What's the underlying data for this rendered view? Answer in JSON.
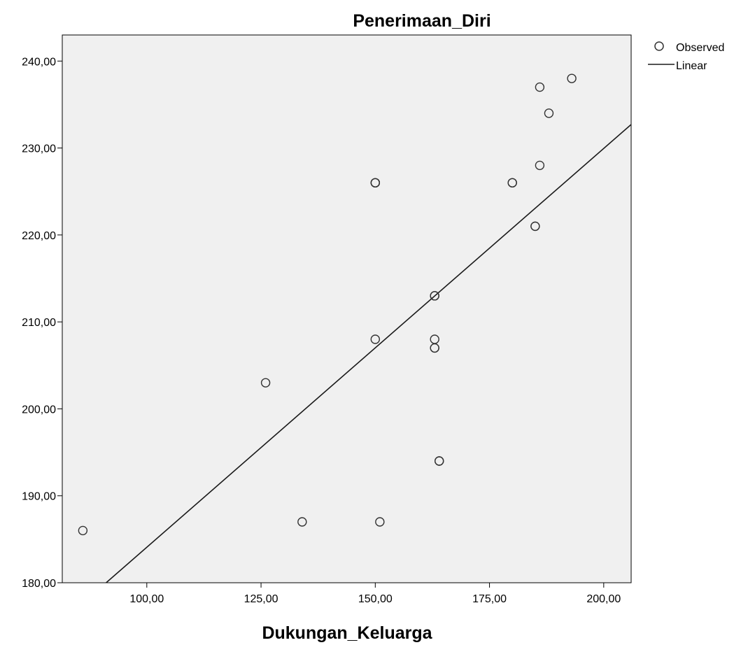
{
  "chart_data": {
    "type": "scatter",
    "title": "Penerimaan_Diri",
    "xlabel": "Dukungan_Keluarga",
    "ylabel": "",
    "xlim": [
      81.5,
      206
    ],
    "ylim": [
      180,
      243
    ],
    "x_ticks": [
      100,
      125,
      150,
      175,
      200
    ],
    "y_ticks": [
      180,
      190,
      200,
      210,
      220,
      230,
      240
    ],
    "x_tick_labels": [
      "100,00",
      "125,00",
      "150,00",
      "175,00",
      "200,00"
    ],
    "y_tick_labels": [
      "180,00",
      "190,00",
      "200,00",
      "210,00",
      "220,00",
      "230,00",
      "240,00"
    ],
    "grid": false,
    "legend": {
      "placement": "top-right",
      "entries": [
        "Observed",
        "Linear"
      ]
    },
    "series": [
      {
        "name": "Observed",
        "type": "scatter",
        "x": [
          86,
          126,
          134,
          150,
          150,
          150,
          150,
          151,
          163,
          163,
          163,
          163,
          163,
          164,
          164,
          180,
          180,
          185,
          185,
          186,
          186,
          188,
          193
        ],
        "y": [
          186,
          203,
          187,
          208,
          226,
          226,
          226,
          187,
          213,
          213,
          208,
          207,
          207,
          194,
          194,
          226,
          226,
          221,
          221,
          228,
          237,
          234,
          238
        ]
      },
      {
        "name": "Linear",
        "type": "line",
        "x": [
          91.1,
          206
        ],
        "y": [
          180,
          232.7
        ]
      }
    ],
    "colors": {
      "plot_background": "#f0f0f0",
      "marker_stroke": "#333333",
      "line": "#1a1a1a"
    }
  }
}
